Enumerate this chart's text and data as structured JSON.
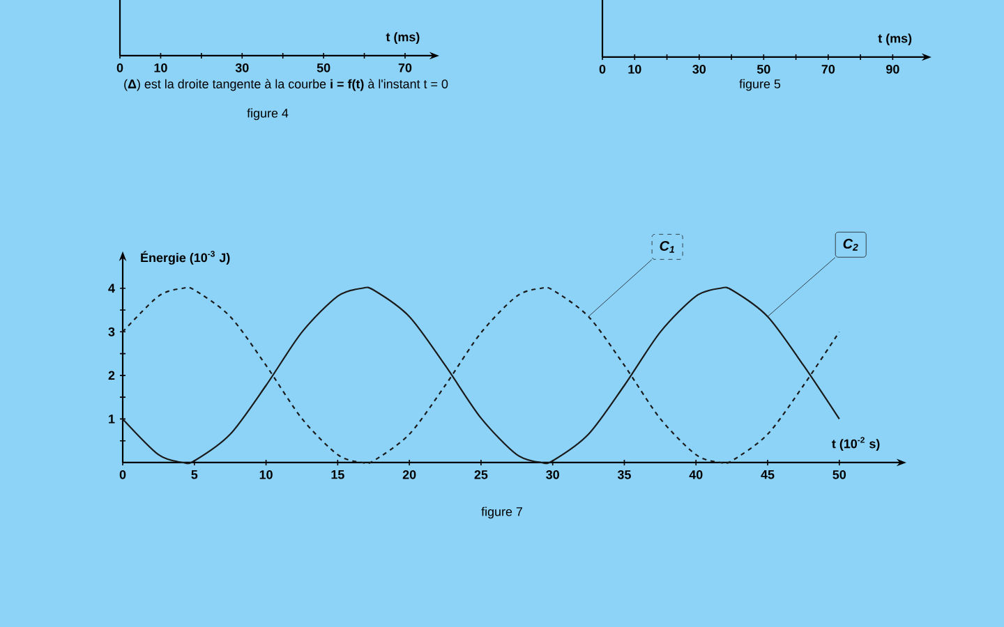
{
  "chart_data": [
    {
      "type": "other",
      "xlabel": "t (ms)",
      "categories": [
        "0",
        "10",
        null,
        "30",
        null,
        "50",
        null,
        "70"
      ],
      "annotations": [
        "(**Δ**) est la droite tangente à la courbe **i = f(t)** à l'instant t = 0",
        "figure 4"
      ]
    },
    {
      "type": "other",
      "xlabel": "t (ms)",
      "categories": [
        "0",
        "10",
        null,
        "30",
        null,
        "50",
        null,
        "70",
        null,
        "90"
      ],
      "annotations": [
        "figure 5"
      ]
    },
    {
      "type": "line",
      "xlabel": "t (10$^{-2}$ s)",
      "ylabel": "Énergie (10$^{-3}$ J)",
      "xlim": [
        0,
        54
      ],
      "ylim": [
        0,
        4.7
      ],
      "xticks": [
        0,
        5,
        10,
        15,
        20,
        25,
        30,
        35,
        40,
        45,
        50
      ],
      "yticks": [
        {
          "value": 0.5,
          "label": null
        },
        1,
        {
          "value": 1.5,
          "label": null
        },
        2,
        {
          "value": 2.5,
          "label": null
        },
        3,
        {
          "value": 3.5,
          "label": null
        },
        4
      ],
      "x": [
        0,
        2.5,
        4.2,
        5,
        7.5,
        10,
        12.5,
        15,
        16.7,
        17.5,
        20,
        22.5,
        25,
        27.5,
        29.2,
        30,
        32.5,
        35,
        37.5,
        40,
        41.7,
        42.5,
        45,
        47.5,
        50
      ],
      "series": [
        {
          "name": "*C*$_{1}$",
          "color": "#1a1a1a",
          "line_style": "dashed",
          "values": [
            3.0,
            3.82,
            4.0,
            3.96,
            3.35,
            2.23,
            1.01,
            0.18,
            0.0,
            0.04,
            0.65,
            1.77,
            2.98,
            3.82,
            4.0,
            3.96,
            3.35,
            2.23,
            1.01,
            0.18,
            0.0,
            0.04,
            0.65,
            1.77,
            3.0
          ]
        },
        {
          "name": "*C*$_{2}$",
          "color": "#1a1a1a",
          "line_style": "solid",
          "values": [
            1.0,
            0.18,
            0.0,
            0.04,
            0.65,
            1.77,
            2.99,
            3.82,
            4.0,
            3.96,
            3.35,
            2.23,
            1.02,
            0.18,
            0.0,
            0.04,
            0.65,
            1.77,
            2.99,
            3.82,
            4.0,
            3.96,
            3.35,
            2.23,
            1.0
          ]
        }
      ],
      "legend": "top right",
      "annotations": [
        "figure 7"
      ]
    }
  ]
}
